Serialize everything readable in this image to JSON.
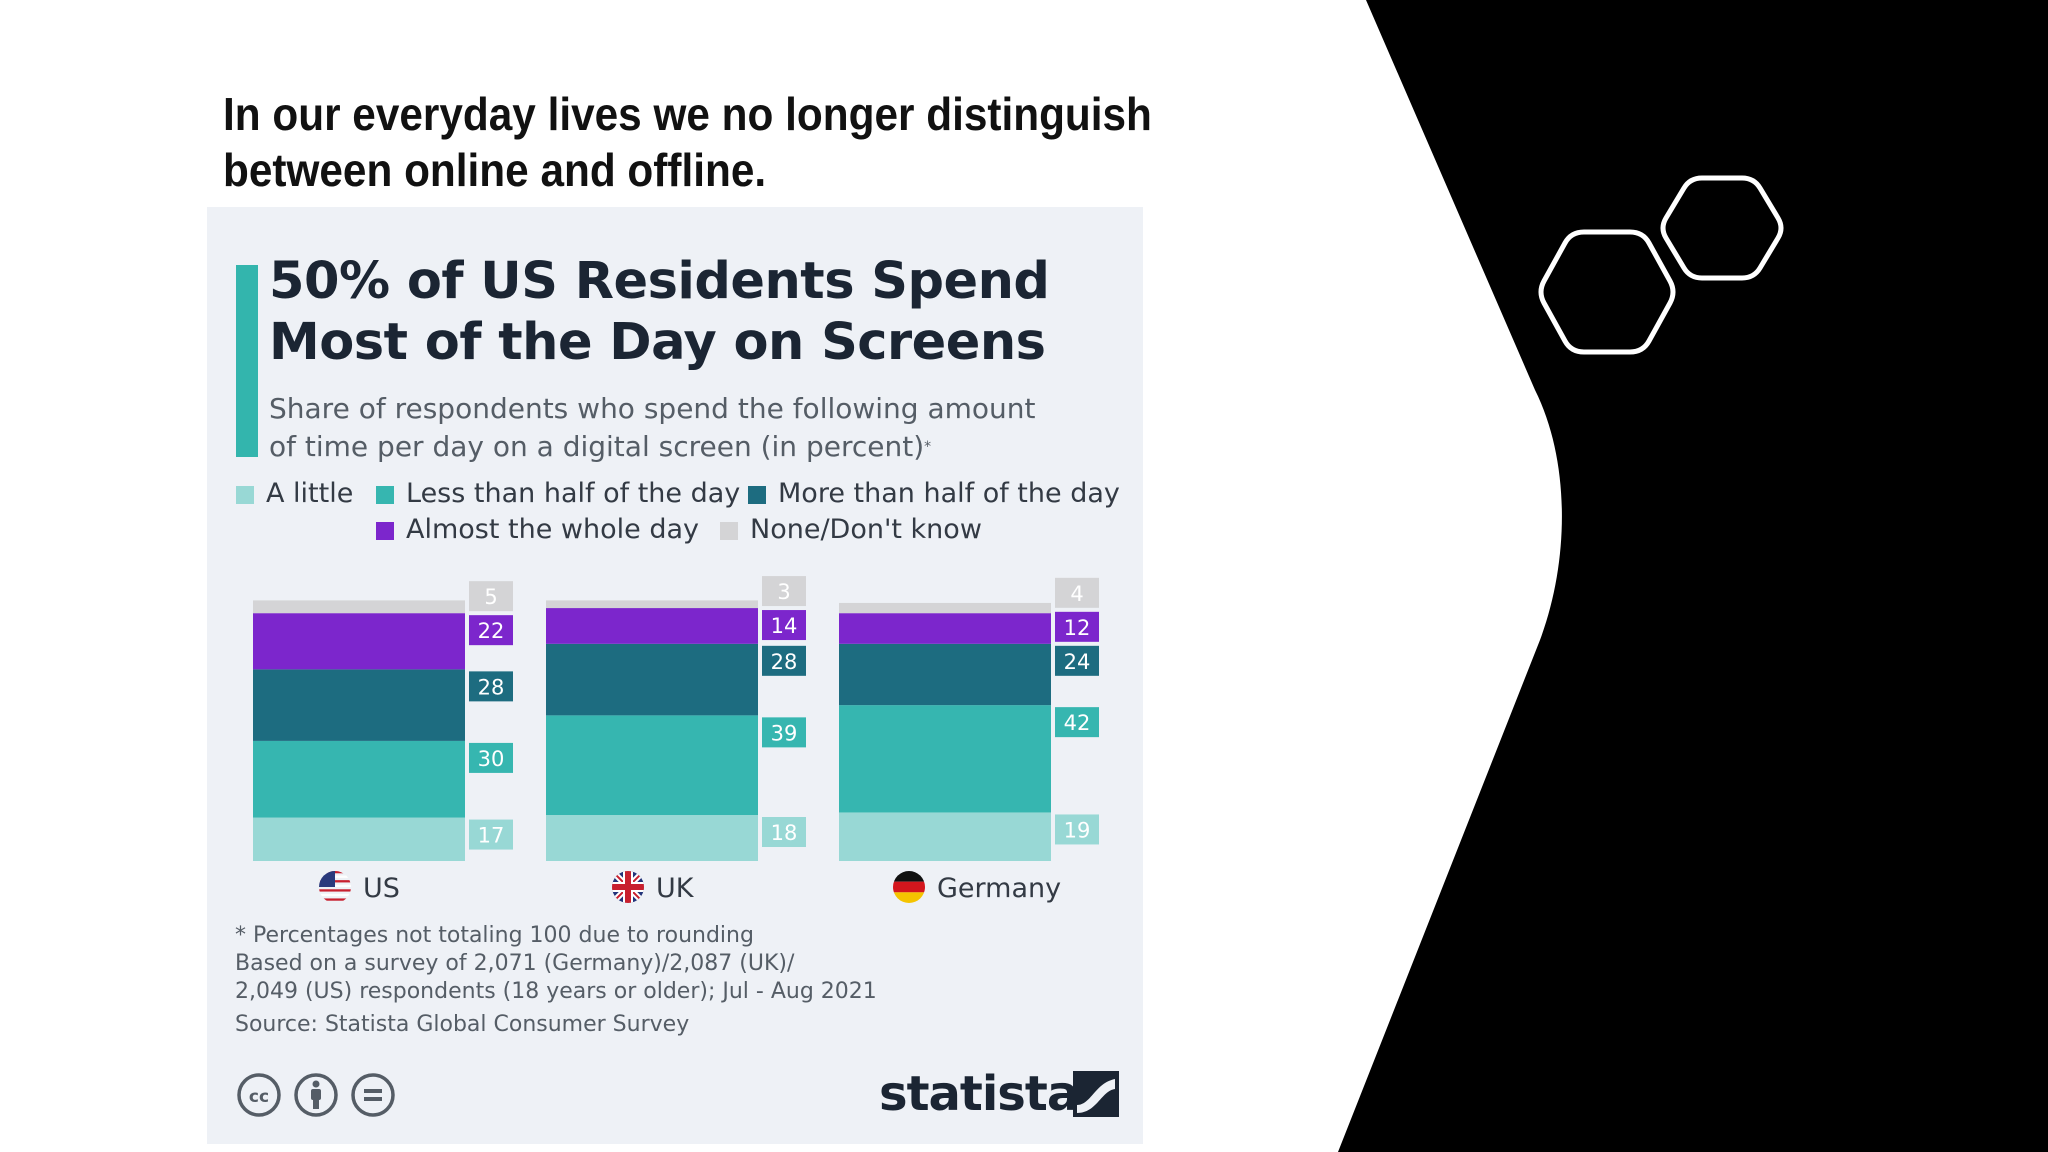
{
  "slide": {
    "heading_lines": [
      "In our everyday lives we no longer distinguish",
      "between online and offline."
    ]
  },
  "infographic": {
    "title_lines": [
      "50% of US Residents Spend",
      "Most of the Day on Screens"
    ],
    "subtitle_lines": [
      "Share of respondents who spend the following amount",
      "of time per day on a digital screen (in percent)"
    ],
    "subtitle_mark": "*",
    "footnotes": [
      "* Percentages not totaling 100 due to rounding",
      "Based on a survey of 2,071 (Germany)/2,087 (UK)/",
      "2,049 (US) respondents (18 years or older); Jul - Aug 2021",
      "Source: Statista Global Consumer Survey"
    ],
    "brand": "statista",
    "license_icons": [
      "cc-icon",
      "attribution-icon",
      "no-derivatives-icon"
    ]
  },
  "colors": {
    "slide_black": "#000000",
    "accent": "#33b5ad",
    "a_little": "#98d8d5",
    "less_than_half": "#36b6b0",
    "more_than_half": "#1d6c80",
    "almost_whole_day": "#7c26cc",
    "none_dont_know": "#d4d4d6"
  },
  "chart_data": {
    "type": "bar",
    "stacked": true,
    "categories": [
      "US",
      "UK",
      "Germany"
    ],
    "category_flags": [
      "us-flag-icon",
      "uk-flag-icon",
      "germany-flag-icon"
    ],
    "series": [
      {
        "name": "A little",
        "values": [
          17,
          18,
          19
        ],
        "color": "#98d8d5"
      },
      {
        "name": "Less than half of the day",
        "values": [
          30,
          39,
          42
        ],
        "color": "#36b6b0"
      },
      {
        "name": "More than half of the day",
        "values": [
          28,
          28,
          24
        ],
        "color": "#1d6c80"
      },
      {
        "name": "Almost the whole day",
        "values": [
          22,
          14,
          12
        ],
        "color": "#7c26cc"
      },
      {
        "name": "None/Don't know",
        "values": [
          5,
          3,
          4
        ],
        "color": "#d4d4d6"
      }
    ],
    "legend_rows": [
      [
        0,
        1,
        2
      ],
      [
        3,
        4
      ]
    ],
    "ylim": [
      0,
      100
    ],
    "title": "50% of US Residents Spend Most of the Day on Screens",
    "unit": "percent"
  }
}
